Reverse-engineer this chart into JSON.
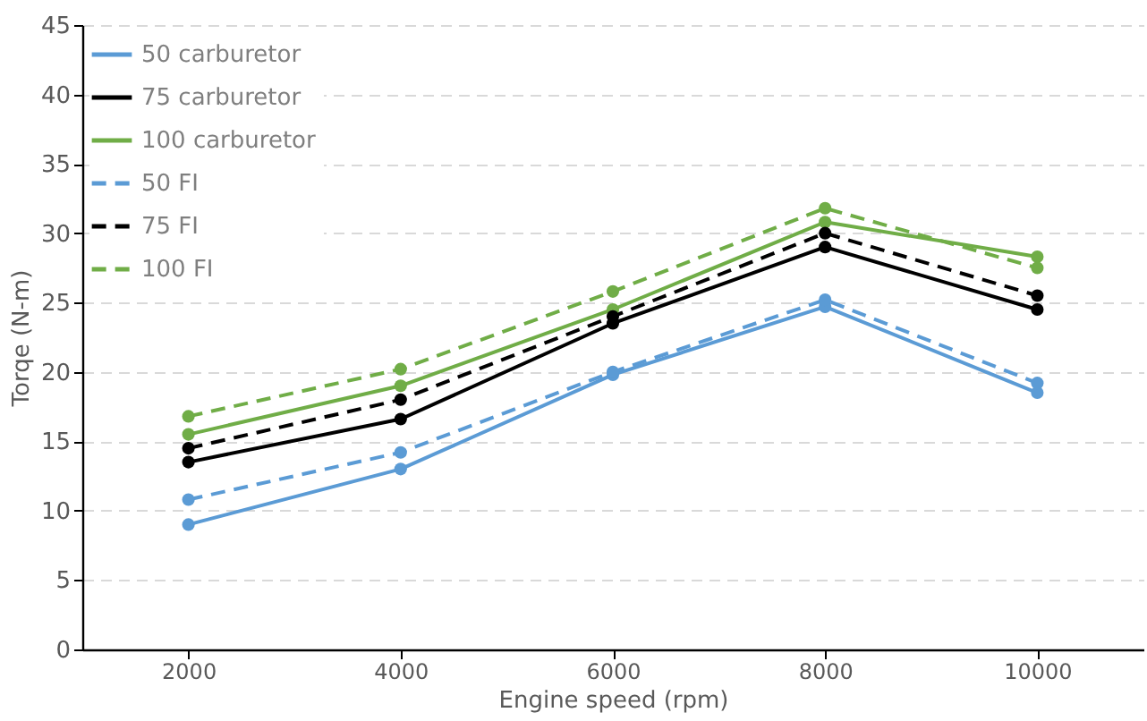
{
  "chart_data": {
    "type": "line",
    "xlabel": "Engine speed (rpm)",
    "ylabel": "Torqe (N-m)",
    "x": [
      2000,
      4000,
      6000,
      8000,
      10000
    ],
    "xlim": [
      1000,
      11000
    ],
    "xticks": [
      2000,
      4000,
      6000,
      8000,
      10000
    ],
    "ylim": [
      0,
      45
    ],
    "yticks": [
      0,
      5,
      10,
      15,
      20,
      25,
      30,
      35,
      40,
      45
    ],
    "grid": "y",
    "legend": "top left",
    "marker": "circle",
    "series": [
      {
        "name": "50  carburetor",
        "color": "#5b9bd5",
        "line_style": "solid",
        "values": [
          9,
          13,
          19.8,
          24.7,
          18.5
        ]
      },
      {
        "name": "75  carburetor",
        "color": "#000000",
        "line_style": "solid",
        "values": [
          13.5,
          16.6,
          23.5,
          29,
          24.5
        ]
      },
      {
        "name": "100  carburetor",
        "color": "#70ad47",
        "line_style": "solid",
        "values": [
          15.5,
          19,
          24.5,
          30.8,
          28.3
        ]
      },
      {
        "name": "50  FI",
        "color": "#5b9bd5",
        "line_style": "dashed",
        "values": [
          10.8,
          14.2,
          20,
          25.2,
          19.2
        ]
      },
      {
        "name": "75  FI",
        "color": "#000000",
        "line_style": "dashed",
        "values": [
          14.5,
          18,
          24,
          30,
          25.5
        ]
      },
      {
        "name": "100  FI",
        "color": "#70ad47",
        "line_style": "dashed",
        "values": [
          16.8,
          20.2,
          25.8,
          31.8,
          27.5
        ]
      }
    ]
  }
}
